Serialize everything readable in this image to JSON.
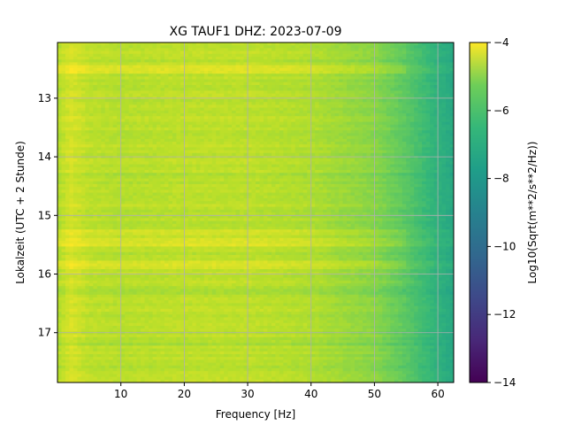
{
  "chart_data": {
    "type": "heatmap",
    "title": "XG TAUF1  DHZ: 2023-07-09",
    "xlabel": "Frequency [Hz]",
    "ylabel": "Lokalzeit (UTC + 2 Stunde)",
    "xlim": [
      0,
      62.5
    ],
    "ylim": [
      17.85,
      12.05
    ],
    "x_ticks": [
      10,
      20,
      30,
      40,
      50,
      60
    ],
    "x_tick_labels": [
      "10",
      "20",
      "30",
      "40",
      "50",
      "60"
    ],
    "y_ticks": [
      13,
      14,
      15,
      16,
      17
    ],
    "y_tick_labels": [
      "13",
      "14",
      "15",
      "16",
      "17"
    ],
    "grid": true,
    "colormap": "viridis",
    "colorbar": {
      "label": "Log10(Sqrt(m**2/s**2/Hz))",
      "range": [
        -14,
        -4
      ],
      "ticks": [
        -4,
        -6,
        -8,
        -10,
        -12,
        -14
      ],
      "tick_labels": [
        "−4",
        "−6",
        "−8",
        "−10",
        "−12",
        "−14"
      ]
    },
    "value_profile": {
      "frequency_hz": [
        0,
        2,
        5,
        10,
        20,
        30,
        40,
        45,
        50,
        52,
        55,
        58,
        60,
        62.5
      ],
      "log_amplitude": [
        -5.2,
        -4.6,
        -5.0,
        -5.1,
        -5.0,
        -5.0,
        -5.2,
        -5.5,
        -5.8,
        -6.1,
        -6.6,
        -7.2,
        -7.6,
        -8.0
      ]
    },
    "bright_bands_hours": [
      12.5,
      15.3,
      15.45,
      15.85
    ],
    "dark_bands_hours": [
      14.3,
      16.3,
      17.2
    ]
  }
}
